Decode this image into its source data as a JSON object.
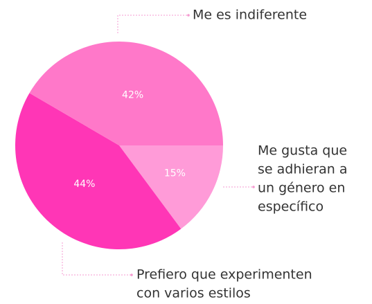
{
  "chart_data": {
    "type": "pie",
    "categories": [
      [
        "Me es indiferente"
      ],
      [
        "Me gusta que",
        "se adhieran a",
        "un género en",
        "específico"
      ],
      [
        "Prefiero que experimenten",
        "con varios estilos"
      ]
    ],
    "values": [
      42,
      15,
      44
    ],
    "value_labels": [
      "42%",
      "15%",
      "44%"
    ],
    "colors": [
      "#ff78c9",
      "#ff9bd8",
      "#ff36b6"
    ]
  }
}
